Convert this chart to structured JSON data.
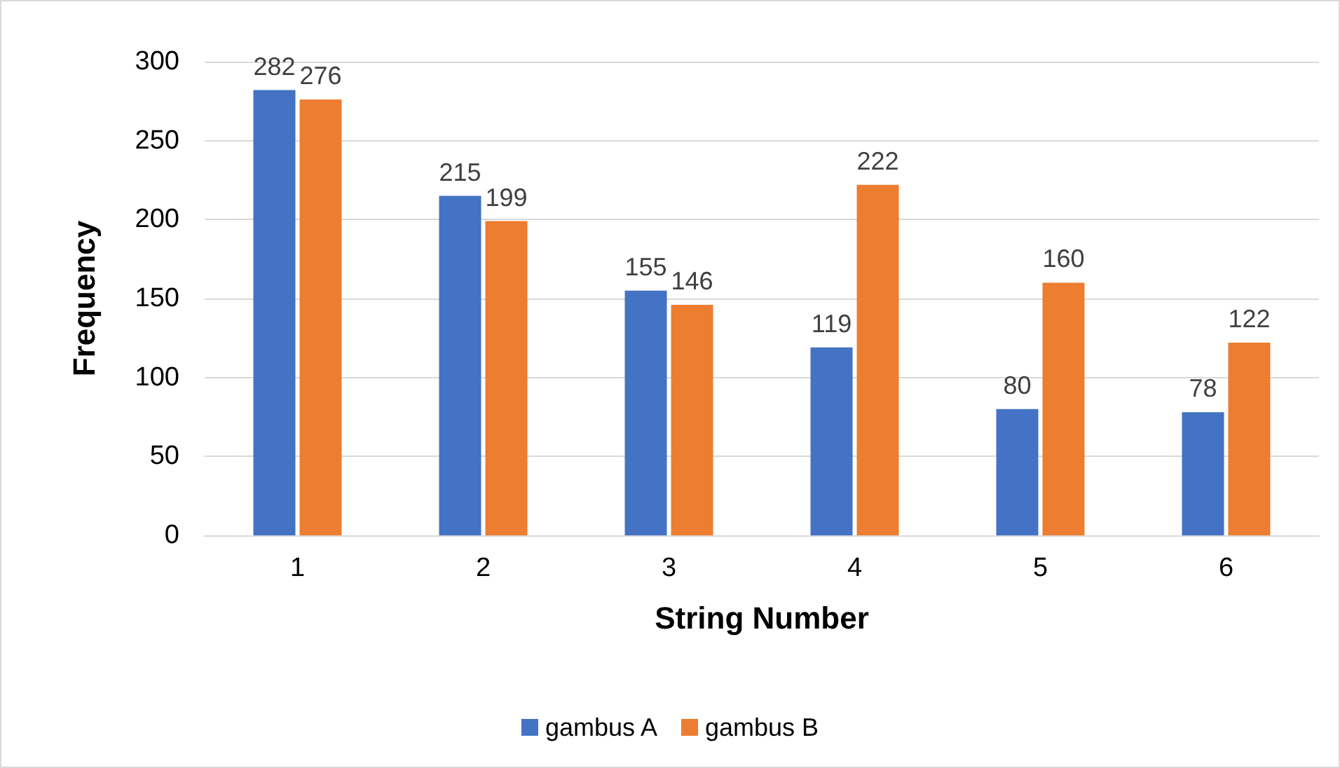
{
  "chart_data": {
    "type": "bar",
    "xlabel": "String Number",
    "ylabel": "Frequency",
    "categories": [
      "1",
      "2",
      "3",
      "4",
      "5",
      "6"
    ],
    "series": [
      {
        "name": "gambus A",
        "color": "#4472c4",
        "values": [
          282,
          215,
          155,
          119,
          80,
          78
        ]
      },
      {
        "name": "gambus B",
        "color": "#ed7d31",
        "values": [
          276,
          199,
          146,
          222,
          160,
          122
        ]
      }
    ],
    "ylim": [
      0,
      300
    ],
    "yticks": [
      0,
      50,
      100,
      150,
      200,
      250,
      300
    ],
    "grid": "y",
    "legend": "bottom",
    "data_labels": true
  }
}
